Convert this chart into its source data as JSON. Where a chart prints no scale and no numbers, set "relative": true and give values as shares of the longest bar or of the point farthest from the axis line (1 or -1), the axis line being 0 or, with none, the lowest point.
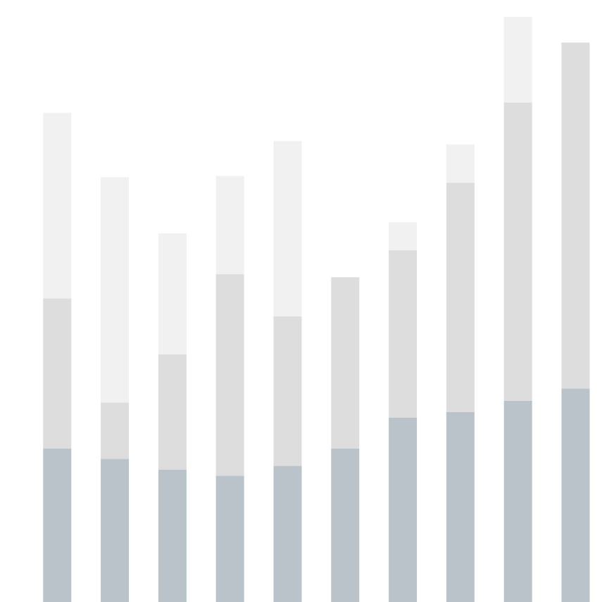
{
  "chart_data": {
    "type": "bar",
    "relative": true,
    "stacked": true,
    "categories": [
      null,
      null,
      null,
      null,
      null,
      null,
      null,
      null,
      null,
      null
    ],
    "series": [
      {
        "color": "#b9c3c9",
        "values": [
          0.262,
          0.245,
          0.226,
          0.216,
          0.233,
          0.262,
          0.315,
          0.325,
          0.344,
          0.365
        ]
      },
      {
        "color": "#dddddd",
        "values": [
          0.257,
          0.096,
          0.197,
          0.344,
          0.255,
          0.293,
          0.286,
          0.392,
          0.51,
          0.591
        ]
      },
      {
        "color": "#f1f1f1",
        "values": [
          0.317,
          0.385,
          0.207,
          0.168,
          0.3,
          0,
          0.048,
          0.065,
          0.146,
          0
        ]
      }
    ]
  }
}
